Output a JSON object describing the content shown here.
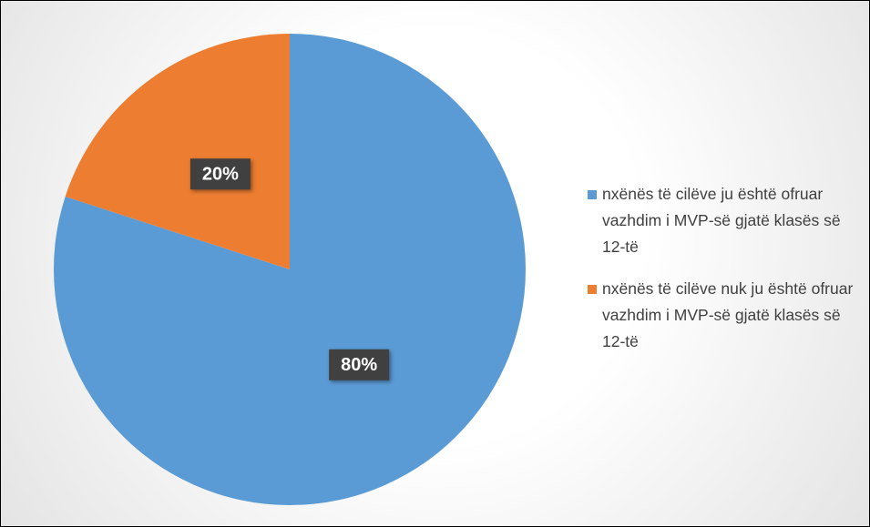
{
  "chart_data": {
    "type": "pie",
    "categories": [
      "nxënës të cilëve ju është ofruar vazhdim i MVP-së gjatë klasës së 12-të",
      "nxënës të cilëve nuk ju është ofruar vazhdim i MVP-së gjatë klasës së 12-të"
    ],
    "values": [
      80,
      20
    ],
    "value_labels": [
      "80%",
      "20%"
    ],
    "colors": [
      "#5b9bd5",
      "#ed7d31"
    ],
    "start_angle": 90,
    "direction": "clockwise",
    "legend": "right"
  }
}
